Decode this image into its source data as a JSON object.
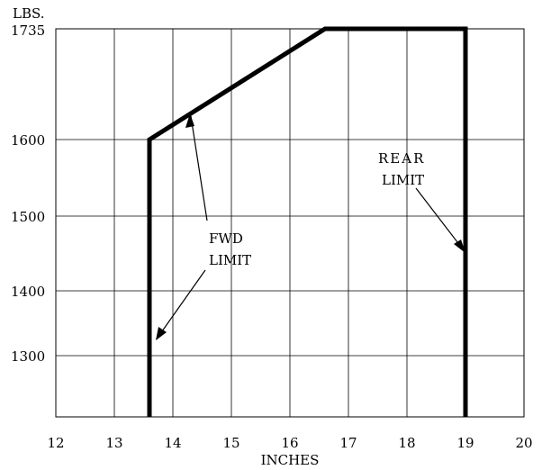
{
  "chart_data": {
    "type": "line",
    "title": "",
    "xlabel": "INCHES",
    "ylabel": "LBS.",
    "xlim": [
      12,
      20
    ],
    "x_ticks": [
      "12",
      "13",
      "14",
      "15",
      "16",
      "17",
      "18",
      "19",
      "20"
    ],
    "y_ticks": [
      "1300",
      "1400",
      "1500",
      "1600",
      "1735"
    ],
    "grid": true,
    "series": [
      {
        "values": [
          {
            "x": 13.6,
            "y": 1190
          },
          {
            "x": 13.6,
            "y": 1600
          },
          {
            "x": 16.6,
            "y": 1735
          },
          {
            "x": 19.0,
            "y": 1735
          },
          {
            "x": 19.0,
            "y": 1190
          }
        ]
      }
    ],
    "annotations": [
      {
        "lines": [
          "FWD",
          "LIMIT"
        ]
      },
      {
        "lines": [
          "REAR",
          "LIMIT"
        ]
      }
    ]
  }
}
